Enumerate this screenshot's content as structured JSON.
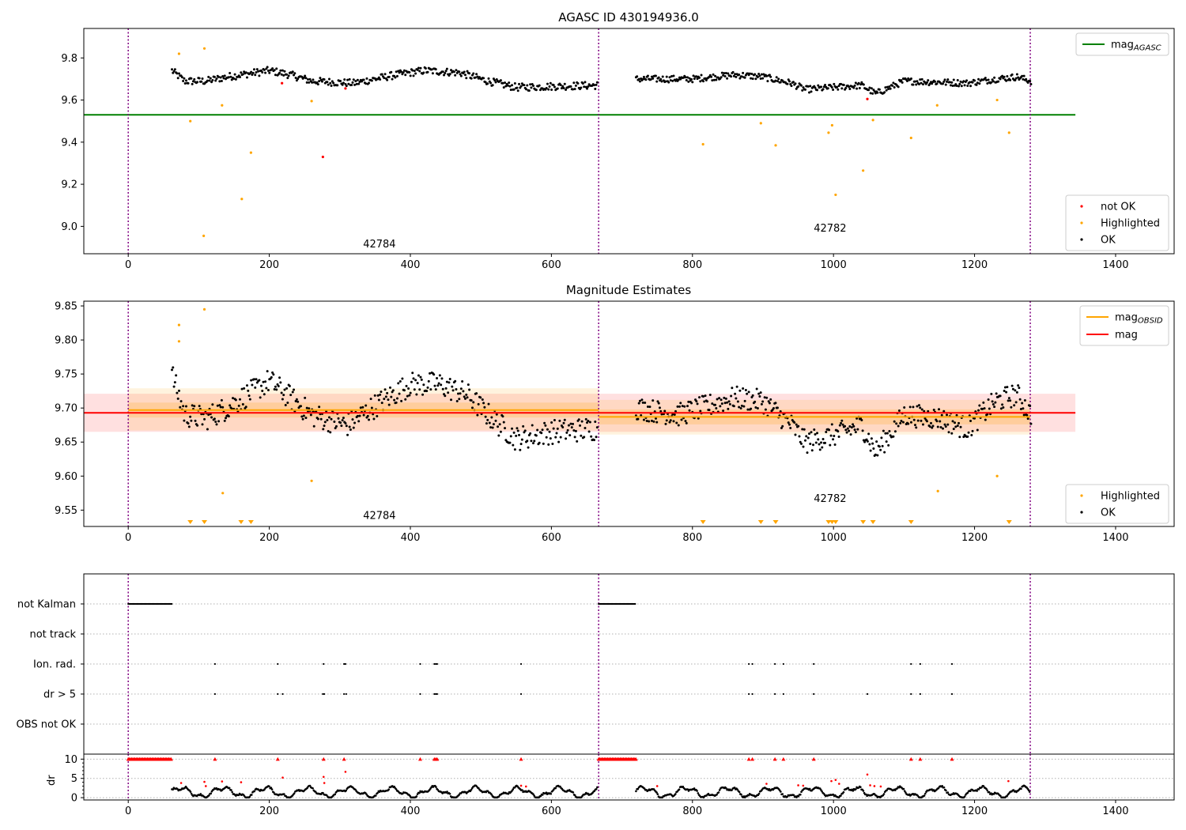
{
  "chart_data": [
    {
      "type": "scatter",
      "title": "AGASC ID 430194936.0",
      "xlim": [
        -63,
        1483
      ],
      "ylim": [
        8.87,
        9.94
      ],
      "x_ticks": [
        0,
        200,
        400,
        600,
        800,
        1000,
        1200,
        1400
      ],
      "y_ticks": [
        9.0,
        9.2,
        9.4,
        9.6,
        9.8
      ],
      "vlines": [
        0,
        667,
        1279
      ],
      "hline": {
        "y": 9.53,
        "x_range": [
          -63,
          1343
        ],
        "color": "#008000"
      },
      "legend_lines": [
        {
          "label": "mag",
          "sub": "AGASC",
          "color": "#008000"
        }
      ],
      "legend_markers": [
        {
          "label": "not OK",
          "color": "#ff0000"
        },
        {
          "label": "Highlighted",
          "color": "#ffa500"
        },
        {
          "label": "OK",
          "color": "#000000"
        }
      ],
      "annotations": [
        {
          "text": "42784",
          "x": 333,
          "y": 8.9
        },
        {
          "text": "42782",
          "x": 972,
          "y": 8.975
        }
      ],
      "ok_segments": [
        {
          "x0": 62,
          "x1": 665,
          "n": 420,
          "knots": [
            [
              62,
              9.74
            ],
            [
              80,
              9.69
            ],
            [
              110,
              9.69
            ],
            [
              140,
              9.71
            ],
            [
              200,
              9.74
            ],
            [
              230,
              9.72
            ],
            [
              260,
              9.69
            ],
            [
              320,
              9.68
            ],
            [
              380,
              9.72
            ],
            [
              420,
              9.74
            ],
            [
              470,
              9.73
            ],
            [
              510,
              9.69
            ],
            [
              550,
              9.66
            ],
            [
              600,
              9.665
            ],
            [
              665,
              9.67
            ]
          ],
          "noise": 0.018
        },
        {
          "x0": 720,
          "x1": 1280,
          "n": 400,
          "knots": [
            [
              720,
              9.7
            ],
            [
              800,
              9.7
            ],
            [
              860,
              9.72
            ],
            [
              900,
              9.71
            ],
            [
              940,
              9.68
            ],
            [
              960,
              9.65
            ],
            [
              1000,
              9.66
            ],
            [
              1040,
              9.67
            ],
            [
              1060,
              9.63
            ],
            [
              1100,
              9.69
            ],
            [
              1150,
              9.685
            ],
            [
              1190,
              9.68
            ],
            [
              1230,
              9.7
            ],
            [
              1260,
              9.71
            ],
            [
              1280,
              9.69
            ]
          ],
          "noise": 0.016
        }
      ],
      "highlighted": [
        [
          72,
          9.82
        ],
        [
          108,
          9.845
        ],
        [
          88,
          9.5
        ],
        [
          107,
          8.955
        ],
        [
          133,
          9.575
        ],
        [
          161,
          9.13
        ],
        [
          174,
          9.35
        ],
        [
          260,
          9.595
        ],
        [
          815,
          9.39
        ],
        [
          897,
          9.49
        ],
        [
          918,
          9.385
        ],
        [
          993,
          9.445
        ],
        [
          998,
          9.48
        ],
        [
          1003,
          9.15
        ],
        [
          1042,
          9.265
        ],
        [
          1056,
          9.505
        ],
        [
          1110,
          9.42
        ],
        [
          1147,
          9.575
        ],
        [
          1232,
          9.6
        ],
        [
          1249,
          9.445
        ]
      ],
      "not_ok": [
        [
          276,
          9.33
        ],
        [
          218,
          9.68
        ],
        [
          308,
          9.655
        ],
        [
          1048,
          9.605
        ]
      ]
    },
    {
      "type": "scatter",
      "title": "Magnitude Estimates",
      "xlim": [
        -63,
        1483
      ],
      "ylim": [
        9.526,
        9.857
      ],
      "x_ticks": [
        0,
        200,
        400,
        600,
        800,
        1000,
        1200,
        1400
      ],
      "y_ticks": [
        9.55,
        9.6,
        9.65,
        9.7,
        9.75,
        9.8,
        9.85
      ],
      "vlines": [
        0,
        667,
        1279
      ],
      "mag": {
        "value": 9.693,
        "band": [
          9.665,
          9.721
        ],
        "x_range": [
          -63,
          1343
        ],
        "color": "#ff0000"
      },
      "mag_obsid": [
        {
          "x_range": [
            0,
            667
          ],
          "value": 9.697,
          "band_inner": [
            9.686,
            9.708
          ],
          "band_outer": [
            9.667,
            9.729
          ]
        },
        {
          "x_range": [
            667,
            1279
          ],
          "value": 9.687,
          "band_inner": [
            9.676,
            9.698
          ],
          "band_outer": [
            9.661,
            9.712
          ]
        }
      ],
      "legend_lines": [
        {
          "label": "mag",
          "sub": "OBSID",
          "color": "#ffa500"
        },
        {
          "label": "mag",
          "sub": "",
          "color": "#ff0000"
        }
      ],
      "legend_markers": [
        {
          "label": "Highlighted",
          "color": "#ffa500"
        },
        {
          "label": "OK",
          "color": "#000000"
        }
      ],
      "annotations": [
        {
          "text": "42784",
          "x": 333,
          "y": 9.537
        },
        {
          "text": "42782",
          "x": 972,
          "y": 9.562
        }
      ],
      "ok_segments": [
        {
          "x0": 62,
          "x1": 665,
          "n": 420,
          "knots": [
            [
              62,
              9.75
            ],
            [
              80,
              9.69
            ],
            [
              110,
              9.685
            ],
            [
              140,
              9.7
            ],
            [
              200,
              9.74
            ],
            [
              230,
              9.715
            ],
            [
              260,
              9.69
            ],
            [
              310,
              9.675
            ],
            [
              360,
              9.71
            ],
            [
              400,
              9.735
            ],
            [
              440,
              9.735
            ],
            [
              480,
              9.72
            ],
            [
              510,
              9.69
            ],
            [
              550,
              9.655
            ],
            [
              600,
              9.665
            ],
            [
              665,
              9.67
            ]
          ],
          "noise": 0.018
        },
        {
          "x0": 720,
          "x1": 1280,
          "n": 400,
          "knots": [
            [
              720,
              9.7
            ],
            [
              780,
              9.69
            ],
            [
              860,
              9.715
            ],
            [
              900,
              9.71
            ],
            [
              940,
              9.675
            ],
            [
              960,
              9.65
            ],
            [
              1000,
              9.66
            ],
            [
              1040,
              9.675
            ],
            [
              1060,
              9.635
            ],
            [
              1100,
              9.69
            ],
            [
              1150,
              9.685
            ],
            [
              1190,
              9.67
            ],
            [
              1230,
              9.71
            ],
            [
              1260,
              9.72
            ],
            [
              1280,
              9.69
            ]
          ],
          "noise": 0.017
        }
      ],
      "highlighted": [
        [
          72,
          9.822
        ],
        [
          72,
          9.798
        ],
        [
          108,
          9.845
        ],
        [
          134,
          9.575
        ],
        [
          260,
          9.593
        ],
        [
          1148,
          9.578
        ],
        [
          1232,
          9.6
        ]
      ],
      "clipped": [
        88,
        108,
        160,
        174,
        815,
        897,
        918,
        993,
        998,
        1003,
        1042,
        1056,
        1110,
        1249
      ]
    },
    {
      "type": "scatter",
      "title": "",
      "xlim": [
        -63,
        1483
      ],
      "categories": [
        "not Kalman",
        "not track",
        "Ion. rad.",
        "dr > 5",
        "OBS not OK"
      ],
      "vlines": [
        0,
        667,
        1279
      ],
      "not_kalman_ranges": [
        [
          0,
          62
        ],
        [
          667,
          720
        ]
      ],
      "ion_rad": [
        123,
        212,
        277,
        306,
        308,
        414,
        434,
        436,
        438,
        557,
        880,
        885,
        917,
        929,
        972,
        1110,
        1123,
        1168
      ],
      "dr_gt5": [
        123,
        212,
        219,
        276,
        278,
        306,
        309,
        414,
        434,
        436,
        438,
        557,
        880,
        885,
        917,
        929,
        972,
        1048,
        1110,
        1123,
        1168
      ]
    },
    {
      "type": "scatter",
      "title": "",
      "ylabel": "dr",
      "xlim": [
        -63,
        1483
      ],
      "ylim": [
        -0.6,
        11.3
      ],
      "x_ticks": [
        0,
        200,
        400,
        600,
        800,
        1000,
        1200,
        1400
      ],
      "y_ticks": [
        0,
        5,
        10
      ],
      "minor_y_ticks": [
        1,
        2,
        3,
        4,
        6,
        7,
        8,
        9
      ],
      "vlines": [
        0,
        667,
        1279
      ],
      "clipped_ranges": [
        [
          0,
          62
        ],
        [
          667,
          720
        ]
      ],
      "clipped_points": [
        123,
        212,
        277,
        306,
        414,
        434,
        436,
        438,
        557,
        880,
        885,
        917,
        929,
        972,
        1110,
        1123,
        1168
      ],
      "red_points": [
        [
          75,
          3.8
        ],
        [
          108,
          4.1
        ],
        [
          110,
          3.0
        ],
        [
          133,
          4.2
        ],
        [
          160,
          4.0
        ],
        [
          219,
          5.2
        ],
        [
          277,
          5.4
        ],
        [
          278,
          3.8
        ],
        [
          308,
          6.7
        ],
        [
          557,
          3.1
        ],
        [
          564,
          2.9
        ],
        [
          750,
          3.0
        ],
        [
          905,
          3.6
        ],
        [
          950,
          3.2
        ],
        [
          957,
          3.1
        ],
        [
          997,
          4.3
        ],
        [
          1003,
          4.6
        ],
        [
          1008,
          3.6
        ],
        [
          1048,
          6.0
        ],
        [
          1052,
          3.2
        ],
        [
          1058,
          3.0
        ],
        [
          1067,
          2.9
        ],
        [
          1248,
          4.3
        ]
      ],
      "black_segments": [
        {
          "x0": 62,
          "x1": 665,
          "n": 460
        },
        {
          "x0": 720,
          "x1": 1278,
          "n": 420
        }
      ]
    }
  ]
}
